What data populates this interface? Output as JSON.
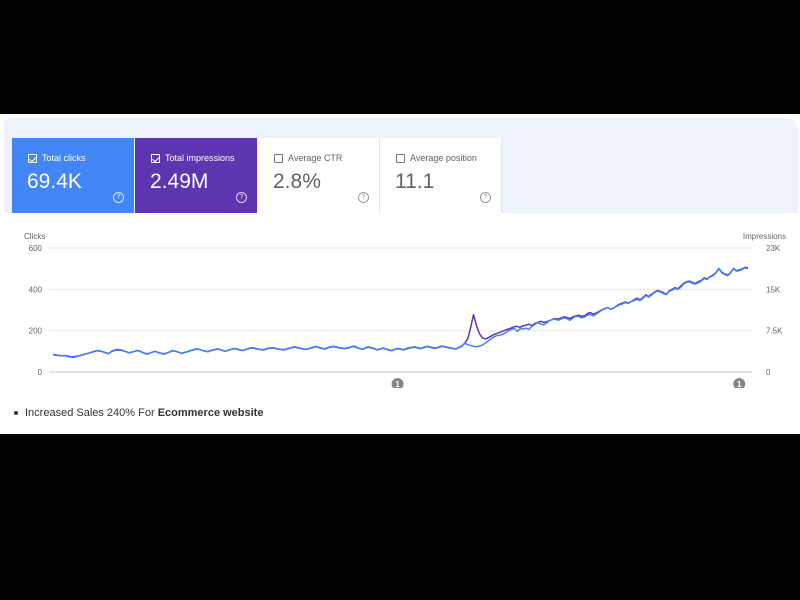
{
  "cards": [
    {
      "label": "Total clicks",
      "value": "69.4K",
      "checked": true
    },
    {
      "label": "Total impressions",
      "value": "2.49M",
      "checked": true
    },
    {
      "label": "Average CTR",
      "value": "2.8%",
      "checked": false
    },
    {
      "label": "Average position",
      "value": "11.1",
      "checked": false
    }
  ],
  "help_glyph": "?",
  "colors": {
    "clicks": "#4285f4",
    "impressions": "#5e35b1"
  },
  "chart_data": {
    "type": "line",
    "grid": true,
    "y_left_label": "Clicks",
    "y_right_label": "Impressions",
    "y_left_ticks": [
      "600",
      "400",
      "200",
      "0"
    ],
    "y_right_ticks": [
      "23K",
      "15K",
      "7.5K",
      "0"
    ],
    "y_left_range": [
      0,
      600
    ],
    "y_right_range": [
      0,
      22500
    ],
    "annotation_marker": "1",
    "annotation_index": [
      118,
      235
    ],
    "series": [
      {
        "key": "clicks",
        "axis": "left",
        "values": [
          85,
          80,
          82,
          78,
          80,
          75,
          72,
          70,
          74,
          78,
          82,
          86,
          90,
          95,
          100,
          104,
          102,
          98,
          92,
          88,
          100,
          106,
          110,
          108,
          104,
          98,
          92,
          96,
          100,
          104,
          98,
          92,
          86,
          90,
          96,
          100,
          94,
          90,
          86,
          92,
          98,
          104,
          100,
          96,
          90,
          94,
          98,
          104,
          108,
          112,
          110,
          106,
          102,
          98,
          104,
          108,
          112,
          110,
          104,
          100,
          106,
          110,
          114,
          112,
          108,
          104,
          110,
          114,
          118,
          116,
          112,
          110,
          108,
          112,
          116,
          118,
          116,
          112,
          110,
          108,
          112,
          116,
          120,
          122,
          118,
          114,
          112,
          110,
          116,
          120,
          124,
          120,
          116,
          112,
          118,
          122,
          124,
          122,
          118,
          116,
          114,
          118,
          122,
          126,
          120,
          114,
          110,
          118,
          122,
          118,
          114,
          108,
          112,
          116,
          112,
          108,
          104,
          110,
          114,
          112,
          108,
          114,
          118,
          120,
          122,
          118,
          114,
          120,
          124,
          122,
          118,
          116,
          120,
          126,
          124,
          120,
          118,
          114,
          112,
          120,
          126,
          140,
          132,
          128,
          124,
          122,
          126,
          130,
          140,
          150,
          160,
          170,
          176,
          178,
          182,
          190,
          200,
          206,
          210,
          196,
          210,
          208,
          212,
          206,
          220,
          230,
          240,
          232,
          228,
          236,
          248,
          254,
          256,
          250,
          256,
          262,
          258,
          250,
          260,
          270,
          268,
          262,
          266,
          276,
          278,
          272,
          280,
          290,
          300,
          306,
          312,
          304,
          310,
          318,
          324,
          330,
          336,
          332,
          340,
          346,
          352,
          346,
          356,
          370,
          362,
          372,
          384,
          392,
          386,
          380,
          374,
          390,
          396,
          404,
          400,
          410,
          426,
          434,
          436,
          428,
          426,
          432,
          440,
          452,
          448,
          460,
          466,
          478,
          500,
          480,
          472,
          466,
          478,
          500,
          488,
          490,
          496,
          504,
          500
        ]
      },
      {
        "key": "impressions",
        "axis": "right",
        "values": [
          3200,
          3100,
          3000,
          2950,
          3000,
          2900,
          2800,
          2750,
          2850,
          2950,
          3100,
          3250,
          3400,
          3550,
          3700,
          3850,
          3800,
          3700,
          3500,
          3350,
          3700,
          3900,
          4000,
          3950,
          3850,
          3700,
          3500,
          3600,
          3750,
          3900,
          3700,
          3500,
          3300,
          3400,
          3600,
          3750,
          3550,
          3400,
          3300,
          3450,
          3650,
          3850,
          3750,
          3600,
          3400,
          3550,
          3650,
          3850,
          4000,
          4150,
          4100,
          3950,
          3800,
          3700,
          3850,
          4000,
          4150,
          4100,
          3900,
          3750,
          3950,
          4100,
          4250,
          4150,
          4000,
          3900,
          4100,
          4250,
          4350,
          4300,
          4150,
          4100,
          4000,
          4150,
          4300,
          4350,
          4300,
          4150,
          4100,
          4000,
          4150,
          4300,
          4450,
          4500,
          4350,
          4250,
          4150,
          4100,
          4300,
          4450,
          4600,
          4450,
          4300,
          4150,
          4350,
          4500,
          4600,
          4500,
          4350,
          4300,
          4250,
          4350,
          4500,
          4650,
          4450,
          4250,
          4100,
          4350,
          4500,
          4350,
          4250,
          4000,
          4150,
          4300,
          4150,
          4000,
          3850,
          4100,
          4250,
          4150,
          4000,
          4200,
          4350,
          4450,
          4500,
          4350,
          4250,
          4450,
          4600,
          4500,
          4350,
          4300,
          4450,
          4650,
          4600,
          4450,
          4350,
          4250,
          4150,
          4450,
          4650,
          5200,
          6000,
          8000,
          10400,
          8500,
          7000,
          6200,
          6000,
          6200,
          6500,
          6800,
          7000,
          7200,
          7400,
          7600,
          7800,
          8000,
          8200,
          8300,
          8100,
          8400,
          8500,
          8700,
          8400,
          8800,
          9000,
          9200,
          9000,
          9100,
          9300,
          9500,
          9700,
          9600,
          9800,
          10000,
          9900,
          9700,
          10000,
          10200,
          10300,
          10100,
          10200,
          10600,
          10800,
          10500,
          10700,
          11000,
          11300,
          11500,
          11700,
          11400,
          11600,
          12000,
          12300,
          12500,
          12700,
          12500,
          12800,
          13100,
          13400,
          13100,
          13500,
          14000,
          13700,
          14100,
          14500,
          14800,
          14600,
          14400,
          14100,
          14700,
          15000,
          15300,
          15100,
          15600,
          16100,
          16400,
          16500,
          16200,
          16100,
          16400,
          16600,
          17100,
          16900,
          17300,
          17600,
          18000,
          18800,
          18100,
          17800,
          17600,
          18000,
          18800,
          18400,
          18500,
          18700,
          19000,
          18900
        ]
      }
    ]
  },
  "footnote": {
    "text": "Increased Sales 240% For ",
    "bold": "Ecommerce website"
  }
}
